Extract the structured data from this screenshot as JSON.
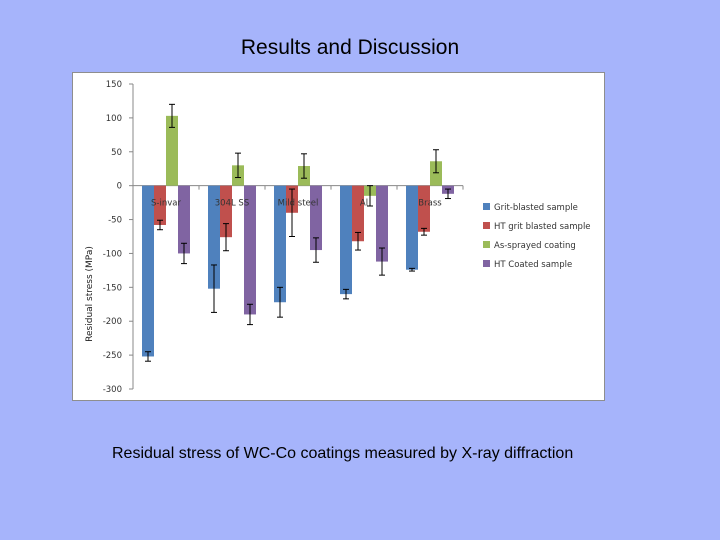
{
  "slide": {
    "title": "Results and Discussion",
    "caption": "Residual stress of WC-Co coatings measured by X-ray diffraction"
  },
  "chart_data": {
    "type": "bar",
    "title": "",
    "xlabel": "",
    "ylabel": "Residual stress (MPa)",
    "ylim": [
      -300,
      150
    ],
    "yticks": [
      150,
      100,
      50,
      0,
      -50,
      -100,
      -150,
      -200,
      -250,
      -300
    ],
    "grid": false,
    "legend_position": "right",
    "categories": [
      "S-invar",
      "304L SS",
      "Mild steel",
      "Al",
      "Brass"
    ],
    "series": [
      {
        "name": "Grit-blasted sample",
        "color": "#4f81bd",
        "values": [
          -252,
          -152,
          -172,
          -160,
          -124
        ],
        "errors": [
          7,
          35,
          22,
          7,
          2
        ]
      },
      {
        "name": "HT grit blasted sample",
        "color": "#c0504d",
        "values": [
          -58,
          -76,
          -40,
          -82,
          -68
        ],
        "errors": [
          7,
          20,
          35,
          13,
          5
        ]
      },
      {
        "name": "As-sprayed coating",
        "color": "#9bbb59",
        "values": [
          103,
          30,
          29,
          -15,
          36
        ],
        "errors": [
          17,
          18,
          18,
          15,
          17
        ]
      },
      {
        "name": "HT Coated sample",
        "color": "#8064a2",
        "values": [
          -100,
          -190,
          -95,
          -112,
          -12
        ],
        "errors": [
          15,
          15,
          18,
          20,
          7
        ]
      }
    ]
  }
}
